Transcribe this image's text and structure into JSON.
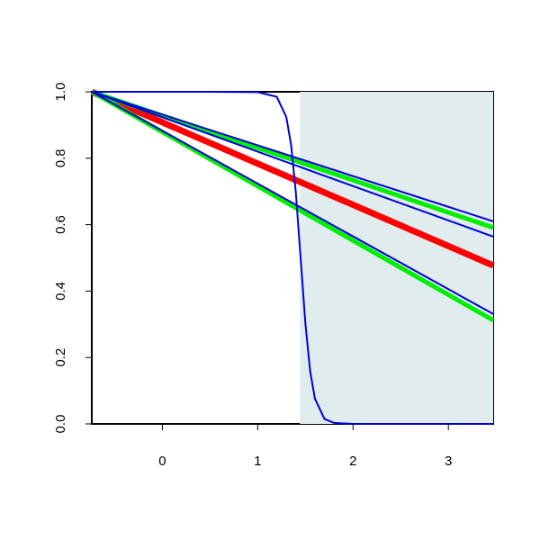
{
  "chart_data": {
    "type": "line",
    "xlim": [
      -0.74,
      3.47
    ],
    "ylim": [
      0,
      1
    ],
    "xticks": [
      0,
      1,
      2,
      3
    ],
    "yticks": [
      {
        "value": 0,
        "label": "0.0"
      },
      {
        "value": 0.2,
        "label": "0.2"
      },
      {
        "value": 0.4,
        "label": "0.4"
      },
      {
        "value": 0.6,
        "label": "0.6"
      },
      {
        "value": 0.8,
        "label": "0.8"
      },
      {
        "value": 1,
        "label": "1.0"
      }
    ],
    "shade_from": 1.443,
    "shade_color": "#e0eced",
    "series": [
      {
        "color": "#ff0000",
        "line_width": 7,
        "x": [
          -0.74,
          3.47
        ],
        "values": [
          1,
          0.477
        ]
      },
      {
        "color": "#00ee00",
        "line_width": 5,
        "x": [
          -0.74,
          3.47
        ],
        "values": [
          1,
          0.591
        ]
      },
      {
        "color": "#00ee00",
        "line_width": 5,
        "x": [
          -0.74,
          3.47
        ],
        "values": [
          1,
          0.312
        ]
      },
      {
        "color": "#0000dd",
        "line_width": 2,
        "x": [
          -0.74,
          3.47
        ],
        "values": [
          1,
          0.61
        ]
      },
      {
        "color": "#0000dd",
        "line_width": 2,
        "x": [
          -0.74,
          3.47
        ],
        "values": [
          1,
          0.564
        ]
      },
      {
        "color": "#0000dd",
        "line_width": 2,
        "x": [
          -0.74,
          3.47
        ],
        "values": [
          1,
          0.331
        ]
      },
      {
        "color": "#0000dd",
        "line_width": 2,
        "x": [
          -0.74,
          0,
          0.5,
          1,
          1.2,
          1.3,
          1.35,
          1.4,
          1.45,
          1.5,
          1.55,
          1.6,
          1.7,
          1.8,
          2,
          3.47
        ],
        "values": [
          1,
          1,
          1,
          0.999,
          0.985,
          0.924,
          0.841,
          0.697,
          0.5,
          0.303,
          0.159,
          0.076,
          0.015,
          0.003,
          0,
          0
        ]
      }
    ]
  }
}
